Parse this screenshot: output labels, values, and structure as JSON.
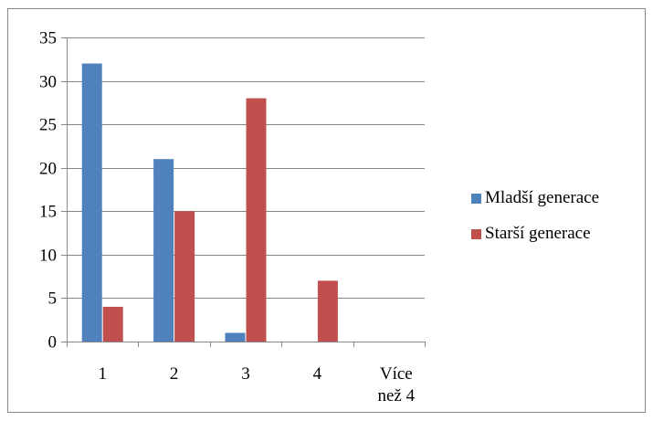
{
  "chart_data": {
    "type": "bar",
    "categories": [
      "1",
      "2",
      "3",
      "4",
      "Více\nnež 4"
    ],
    "series": [
      {
        "name": "Mladší generace",
        "values": [
          32,
          21,
          1,
          0,
          0
        ],
        "color": "#4F81BD"
      },
      {
        "name": "Starší generace",
        "values": [
          4,
          15,
          28,
          7,
          0
        ],
        "color": "#C0504D"
      }
    ],
    "ylim": [
      0,
      35
    ],
    "yticks": [
      0,
      5,
      10,
      15,
      20,
      25,
      30,
      35
    ],
    "title": "",
    "xlabel": "",
    "ylabel": "",
    "grid": true,
    "legend_position": "right"
  }
}
